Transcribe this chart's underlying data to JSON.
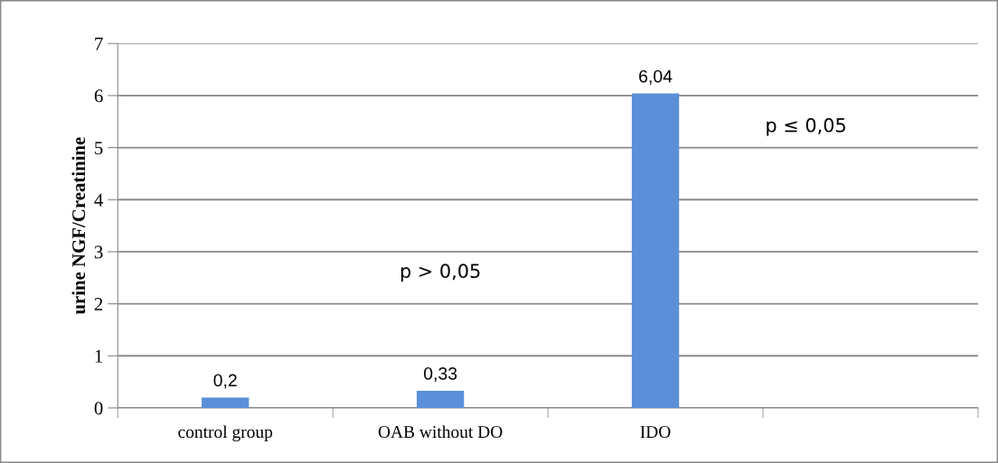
{
  "chart_data": {
    "type": "bar",
    "ylabel": "urine NGF/Creatinine",
    "categories": [
      "control group",
      "OAB without DO",
      "IDO",
      null
    ],
    "values": [
      0.2,
      0.33,
      6.04,
      null
    ],
    "value_labels": [
      "0,2",
      "0,33",
      "6,04",
      null
    ],
    "color": "#5b8fd9",
    "ylim": [
      0,
      7
    ],
    "yticks": [
      0,
      1,
      2,
      3,
      4,
      5,
      6,
      7
    ],
    "grid": "y",
    "annotations": [
      "p > 0,05",
      "p ≤ 0,05"
    ]
  }
}
